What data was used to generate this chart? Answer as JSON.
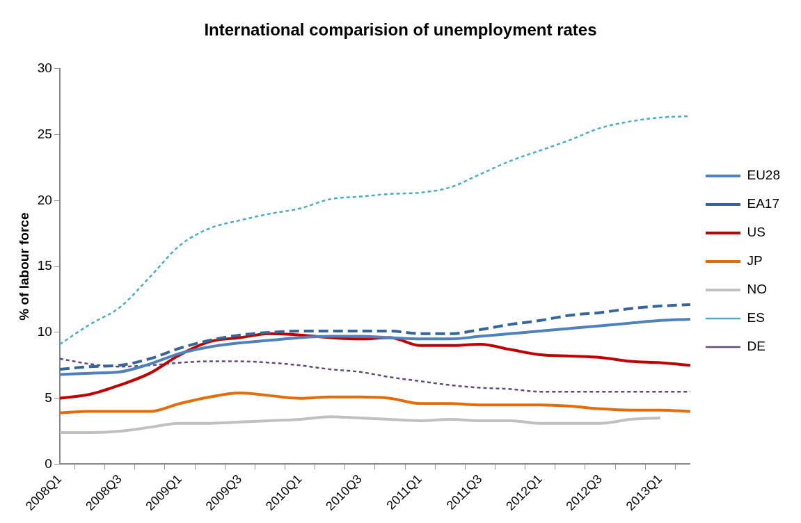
{
  "chart_data": {
    "type": "line",
    "title": "International comparision of unemployment rates",
    "ylabel": "% of labour force",
    "categories": [
      "2008Q1",
      null,
      "2008Q3",
      null,
      "2009Q1",
      null,
      "2009Q3",
      null,
      "2010Q1",
      null,
      "2010Q3",
      null,
      "2011Q1",
      null,
      "2011Q3",
      null,
      "2012Q1",
      null,
      "2012Q3",
      null,
      "2013Q1",
      null
    ],
    "ylim": [
      0,
      30
    ],
    "yticks": [
      0,
      5,
      10,
      15,
      20,
      25,
      30
    ],
    "grid": false,
    "legend": "right",
    "marker": "none",
    "series": [
      {
        "name": "EU28",
        "color": "#4f81bd",
        "line_style": "solid",
        "values": [
          6.8,
          6.9,
          7.0,
          7.6,
          8.4,
          8.9,
          9.2,
          9.4,
          9.6,
          9.7,
          9.7,
          9.6,
          9.5,
          9.5,
          9.7,
          9.9,
          10.1,
          10.3,
          10.5,
          10.7,
          10.9,
          11.0
        ]
      },
      {
        "name": "EA17",
        "color": "#36659b",
        "line_style": "dashed",
        "values": [
          7.2,
          7.4,
          7.5,
          8.0,
          8.8,
          9.4,
          9.8,
          10.0,
          10.1,
          10.1,
          10.1,
          10.1,
          9.9,
          9.9,
          10.2,
          10.6,
          10.9,
          11.3,
          11.5,
          11.8,
          12.0,
          12.1
        ]
      },
      {
        "name": "US",
        "color": "#c00000",
        "line_style": "solid",
        "values": [
          5.0,
          5.3,
          6.0,
          6.9,
          8.3,
          9.3,
          9.6,
          9.9,
          9.8,
          9.6,
          9.5,
          9.6,
          9.0,
          9.0,
          9.1,
          8.7,
          8.3,
          8.2,
          8.1,
          7.8,
          7.7,
          7.5
        ]
      },
      {
        "name": "JP",
        "color": "#e46c0a",
        "line_style": "solid",
        "values": [
          3.9,
          4.0,
          4.0,
          4.0,
          4.6,
          5.1,
          5.4,
          5.2,
          5.0,
          5.1,
          5.1,
          5.0,
          4.6,
          4.6,
          4.5,
          4.5,
          4.5,
          4.4,
          4.2,
          4.1,
          4.1,
          4.0
        ]
      },
      {
        "name": "NO",
        "color": "#c0c0c0",
        "line_style": "solid",
        "values": [
          2.4,
          2.4,
          2.5,
          2.8,
          3.1,
          3.1,
          3.2,
          3.3,
          3.4,
          3.6,
          3.5,
          3.4,
          3.3,
          3.4,
          3.3,
          3.3,
          3.1,
          3.1,
          3.1,
          3.4,
          3.5,
          null
        ]
      },
      {
        "name": "ES",
        "color": "#4bacc6",
        "line_style": "dotted",
        "values": [
          9.1,
          10.6,
          11.9,
          14.2,
          16.6,
          17.9,
          18.5,
          19.0,
          19.4,
          20.1,
          20.3,
          20.5,
          20.6,
          21.0,
          22.0,
          23.0,
          23.8,
          24.6,
          25.5,
          26.0,
          26.3,
          26.4
        ]
      },
      {
        "name": "DE",
        "color": "#604a7b",
        "line_style": "dotted",
        "values": [
          8.0,
          7.6,
          7.4,
          7.5,
          7.7,
          7.8,
          7.8,
          7.7,
          7.5,
          7.2,
          7.0,
          6.6,
          6.3,
          6.0,
          5.8,
          5.7,
          5.5,
          5.5,
          5.5,
          5.5,
          5.5,
          5.5
        ]
      }
    ]
  }
}
